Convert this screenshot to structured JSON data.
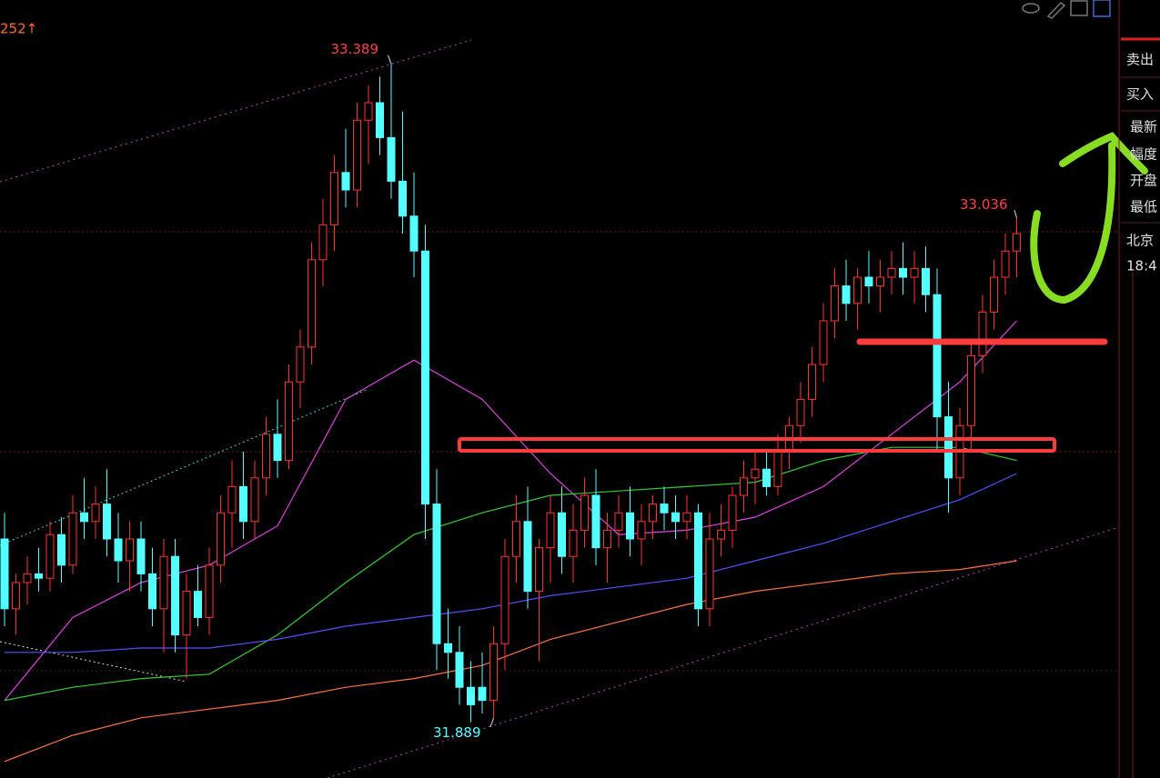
{
  "chart_data": {
    "type": "candlestick",
    "corner_label": "252↑",
    "ylim": [
      31.6,
      33.5
    ],
    "up_color": "#ff3232",
    "down_color": "#54ffff",
    "ohlc": [
      [
        32.3,
        32.36,
        32.1,
        32.14
      ],
      [
        32.14,
        32.22,
        32.08,
        32.2
      ],
      [
        32.2,
        32.26,
        32.15,
        32.22
      ],
      [
        32.22,
        32.28,
        32.18,
        32.21
      ],
      [
        32.21,
        32.34,
        32.18,
        32.31
      ],
      [
        32.31,
        32.35,
        32.2,
        32.24
      ],
      [
        32.24,
        32.4,
        32.22,
        32.36
      ],
      [
        32.36,
        32.44,
        32.3,
        32.34
      ],
      [
        32.34,
        32.42,
        32.3,
        32.38
      ],
      [
        32.38,
        32.46,
        32.26,
        32.3
      ],
      [
        32.3,
        32.36,
        32.2,
        32.25
      ],
      [
        32.25,
        32.34,
        32.18,
        32.3
      ],
      [
        32.3,
        32.34,
        32.18,
        32.22
      ],
      [
        32.22,
        32.28,
        32.1,
        32.14
      ],
      [
        32.14,
        32.3,
        32.04,
        32.26
      ],
      [
        32.26,
        32.3,
        32.04,
        32.08
      ],
      [
        32.08,
        32.22,
        31.98,
        32.18
      ],
      [
        32.18,
        32.24,
        32.1,
        32.12
      ],
      [
        32.12,
        32.28,
        32.08,
        32.24
      ],
      [
        32.24,
        32.4,
        32.2,
        32.36
      ],
      [
        32.36,
        32.48,
        32.28,
        32.42
      ],
      [
        32.42,
        32.5,
        32.3,
        32.34
      ],
      [
        32.34,
        32.48,
        32.3,
        32.44
      ],
      [
        32.44,
        32.58,
        32.4,
        32.54
      ],
      [
        32.54,
        32.62,
        32.44,
        32.48
      ],
      [
        32.48,
        32.7,
        32.46,
        32.66
      ],
      [
        32.66,
        32.78,
        32.6,
        32.74
      ],
      [
        32.74,
        32.98,
        32.7,
        32.94
      ],
      [
        32.94,
        33.08,
        32.88,
        33.02
      ],
      [
        33.02,
        33.18,
        32.96,
        33.14
      ],
      [
        33.14,
        33.24,
        33.06,
        33.1
      ],
      [
        33.1,
        33.3,
        33.06,
        33.26
      ],
      [
        33.26,
        33.34,
        33.16,
        33.3
      ],
      [
        33.3,
        33.36,
        33.18,
        33.22
      ],
      [
        33.22,
        33.389,
        33.08,
        33.12
      ],
      [
        33.12,
        33.28,
        33.0,
        33.04
      ],
      [
        33.04,
        33.14,
        32.9,
        32.96
      ],
      [
        32.96,
        33.02,
        32.3,
        32.38
      ],
      [
        32.38,
        32.46,
        32.0,
        32.06
      ],
      [
        32.06,
        32.14,
        31.98,
        32.04
      ],
      [
        32.04,
        32.1,
        31.92,
        31.96
      ],
      [
        31.96,
        32.02,
        31.88,
        31.92
      ],
      [
        31.96,
        32.04,
        31.9,
        31.93
      ],
      [
        31.93,
        32.1,
        31.889,
        32.06
      ],
      [
        32.06,
        32.3,
        32.0,
        32.26
      ],
      [
        32.26,
        32.4,
        32.2,
        32.34
      ],
      [
        32.34,
        32.42,
        32.14,
        32.18
      ],
      [
        32.18,
        32.3,
        32.02,
        32.28
      ],
      [
        32.28,
        32.4,
        32.2,
        32.36
      ],
      [
        32.36,
        32.42,
        32.22,
        32.26
      ],
      [
        32.26,
        32.38,
        32.2,
        32.32
      ],
      [
        32.32,
        32.44,
        32.28,
        32.4
      ],
      [
        32.4,
        32.46,
        32.24,
        32.28
      ],
      [
        32.28,
        32.36,
        32.2,
        32.32
      ],
      [
        32.32,
        32.4,
        32.28,
        32.36
      ],
      [
        32.36,
        32.42,
        32.26,
        32.3
      ],
      [
        32.3,
        32.38,
        32.24,
        32.34
      ],
      [
        32.34,
        32.4,
        32.3,
        32.38
      ],
      [
        32.38,
        32.42,
        32.32,
        32.36
      ],
      [
        32.36,
        32.4,
        32.3,
        32.34
      ],
      [
        32.34,
        32.4,
        32.3,
        32.36
      ],
      [
        32.36,
        32.38,
        32.1,
        32.14
      ],
      [
        32.14,
        32.36,
        32.1,
        32.3
      ],
      [
        32.3,
        32.38,
        32.26,
        32.32
      ],
      [
        32.32,
        32.42,
        32.28,
        32.4
      ],
      [
        32.4,
        32.48,
        32.36,
        32.44
      ],
      [
        32.44,
        32.5,
        32.38,
        32.46
      ],
      [
        32.46,
        32.5,
        32.4,
        32.42
      ],
      [
        32.42,
        32.54,
        32.4,
        32.5
      ],
      [
        32.5,
        32.58,
        32.46,
        32.56
      ],
      [
        32.56,
        32.66,
        32.52,
        32.62
      ],
      [
        32.62,
        32.74,
        32.58,
        32.7
      ],
      [
        32.7,
        32.84,
        32.66,
        32.8
      ],
      [
        32.8,
        32.92,
        32.76,
        32.88
      ],
      [
        32.88,
        32.94,
        32.8,
        32.84
      ],
      [
        32.84,
        32.92,
        32.78,
        32.9
      ],
      [
        32.9,
        32.96,
        32.84,
        32.88
      ],
      [
        32.88,
        32.94,
        32.82,
        32.9
      ],
      [
        32.9,
        32.96,
        32.86,
        32.92
      ],
      [
        32.92,
        32.98,
        32.86,
        32.9
      ],
      [
        32.9,
        32.96,
        32.84,
        32.92
      ],
      [
        32.92,
        32.97,
        32.82,
        32.86
      ],
      [
        32.86,
        32.92,
        32.5,
        32.58
      ],
      [
        32.58,
        32.66,
        32.36,
        32.44
      ],
      [
        32.44,
        32.6,
        32.4,
        32.56
      ],
      [
        32.56,
        32.76,
        32.5,
        32.72
      ],
      [
        32.72,
        32.86,
        32.68,
        32.82
      ],
      [
        32.82,
        32.94,
        32.78,
        32.9
      ],
      [
        32.9,
        33.0,
        32.86,
        32.96
      ],
      [
        32.96,
        33.036,
        32.9,
        33.0
      ]
    ],
    "ma_x": [
      0,
      6,
      12,
      18,
      24,
      30,
      36,
      42,
      48,
      54,
      60,
      66,
      72,
      78,
      84,
      89
    ],
    "ma_lines": [
      {
        "color": "#e040e0",
        "values": [
          31.93,
          32.12,
          32.2,
          32.24,
          32.33,
          32.62,
          32.71,
          32.62,
          32.45,
          32.31,
          32.32,
          32.35,
          32.42,
          32.54,
          32.66,
          32.8
        ]
      },
      {
        "color": "#33cc33",
        "values": [
          31.93,
          31.96,
          31.98,
          31.99,
          32.08,
          32.2,
          32.31,
          32.36,
          32.4,
          32.41,
          32.42,
          32.43,
          32.48,
          32.51,
          32.51,
          32.48
        ]
      },
      {
        "color": "#5050ff",
        "values": [
          32.04,
          32.04,
          32.05,
          32.05,
          32.07,
          32.1,
          32.12,
          32.14,
          32.17,
          32.19,
          32.21,
          32.25,
          32.29,
          32.34,
          32.39,
          32.45
        ]
      },
      {
        "color": "#ff7040",
        "values": [
          31.79,
          31.85,
          31.89,
          31.91,
          31.93,
          31.96,
          31.98,
          32.01,
          32.07,
          32.11,
          32.15,
          32.18,
          32.2,
          32.22,
          32.23,
          32.25
        ]
      }
    ],
    "panel_labels": [
      "卖出",
      "买入",
      "最新",
      "幅度",
      "开盘",
      "最低",
      "北京",
      "18:4"
    ]
  }
}
